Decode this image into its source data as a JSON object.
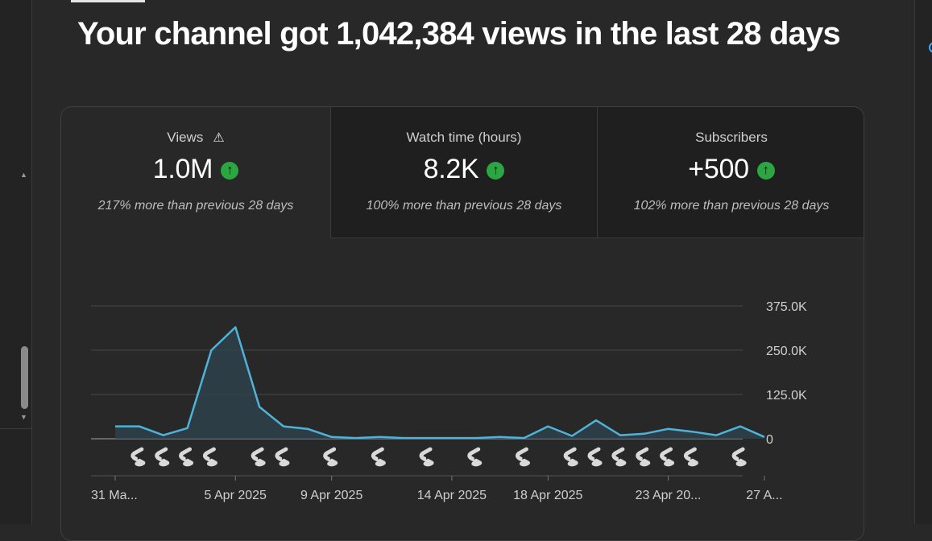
{
  "headline": "Your channel got 1,042,384 views in the last 28 days",
  "metrics": [
    {
      "label": "Views",
      "warning_icon": "warning-triangle-icon",
      "value": "1.0M",
      "trend": "up",
      "comparison": "217% more than previous 28 days"
    },
    {
      "label": "Watch time (hours)",
      "value": "8.2K",
      "trend": "up",
      "comparison": "100% more than previous 28 days"
    },
    {
      "label": "Subscribers",
      "value": "+500",
      "trend": "up",
      "comparison": "102% more than previous 28 days"
    }
  ],
  "colors": {
    "background": "#282828",
    "selected_tab": "#282828",
    "unselected_tab": "#1f1f1f",
    "line": "#4fb3d9",
    "area": "#2f4450",
    "trend_up": "#2ba640",
    "accent": "#3ea6ff"
  },
  "chart_data": {
    "type": "area",
    "series": [
      {
        "values": [
          35000,
          35000,
          10000,
          30000,
          250000,
          315000,
          90000,
          35000,
          28000,
          5000,
          2000,
          5000,
          2000,
          2000,
          2000,
          2000,
          5000,
          2000,
          35000,
          8000,
          52000,
          10000,
          14000,
          28000,
          20000,
          10000,
          35000,
          5000
        ]
      }
    ],
    "ylim": [
      0,
      375000
    ],
    "y_ticks": [
      "375.0K",
      "250.0K",
      "125.0K",
      "0"
    ],
    "y_tick_values": [
      375000,
      250000,
      125000,
      0
    ],
    "x_tick_labels": [
      "31 Ma...",
      "5 Apr 2025",
      "9 Apr 2025",
      "14 Apr 2025",
      "18 Apr 2025",
      "23 Apr 20...",
      "27 A..."
    ],
    "x_tick_days": [
      0,
      5,
      9,
      14,
      18,
      23,
      27
    ],
    "shorts_marker_icon": "shorts-icon",
    "shorts_marker_days": [
      1,
      2,
      3,
      4,
      6,
      7,
      9,
      11,
      13,
      15,
      17,
      19,
      20,
      21,
      22,
      23,
      24,
      26
    ],
    "grid": true
  }
}
